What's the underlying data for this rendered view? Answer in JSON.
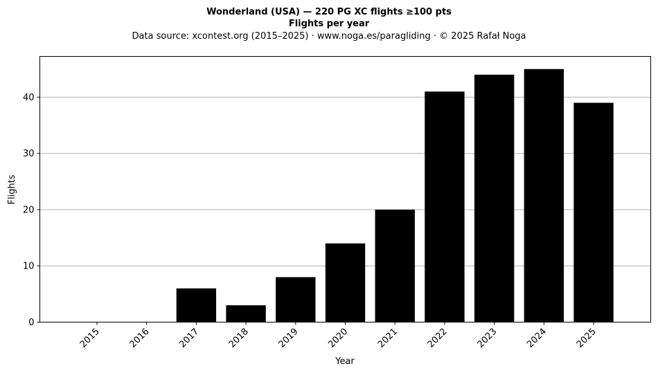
{
  "chart_data": {
    "type": "bar",
    "title": "Wonderland (USA)  —  220 PG XC flights ≥100 pts",
    "subtitle": "Flights per year",
    "source_line": "Data source: xcontest.org (2015–2025)  ·  www.noga.es/paragliding  ·  © 2025 Rafał Noga",
    "xlabel": "Year",
    "ylabel": "Flights",
    "categories": [
      "2015",
      "2016",
      "2017",
      "2018",
      "2019",
      "2020",
      "2021",
      "2022",
      "2023",
      "2024",
      "2025"
    ],
    "values": [
      0,
      0,
      6,
      3,
      8,
      14,
      20,
      41,
      44,
      45,
      39
    ],
    "ylim": [
      0,
      47.25
    ],
    "yticks": [
      0,
      10,
      20,
      30,
      40
    ],
    "grid": "y",
    "bar_color": "#000000"
  }
}
